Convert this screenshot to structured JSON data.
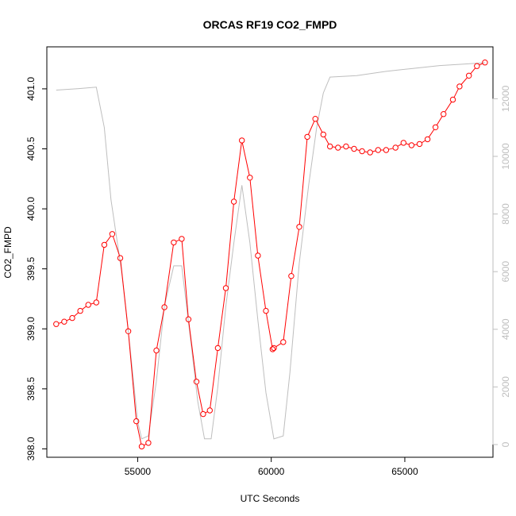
{
  "chart_data": {
    "type": "line",
    "title": "ORCAS RF19 CO2_FMPD",
    "xlabel": "UTC Seconds",
    "ylabel": "CO2_FMPD",
    "xlim": [
      51600,
      68300
    ],
    "ylim": [
      397.93,
      401.35
    ],
    "y2lim": [
      -440,
      13800
    ],
    "x_ticks": [
      55000,
      60000,
      65000
    ],
    "x_tick_labels": [
      "55000",
      "60000",
      "65000"
    ],
    "y_ticks": [
      398.0,
      398.5,
      399.0,
      399.5,
      400.0,
      400.5,
      401.0
    ],
    "y_tick_labels": [
      "398.0",
      "398.5",
      "399.0",
      "399.5",
      "400.0",
      "400.5",
      "401.0"
    ],
    "y2_ticks": [
      0,
      2000,
      4000,
      6000,
      8000,
      10000,
      12000
    ],
    "y2_tick_labels": [
      "0",
      "2000",
      "4000",
      "6000",
      "8000",
      "10000",
      "12000"
    ],
    "grid": false,
    "colors": {
      "co2": "#ff0000",
      "altitude": "#bebebe",
      "axis": "#000000",
      "right_axis": "#bebebe"
    },
    "series": [
      {
        "style": "points-and-lines",
        "axis": "left",
        "x": [
          51950,
          52250,
          52550,
          52850,
          53150,
          53450,
          53750,
          54050,
          54350,
          54650,
          54950,
          55150,
          55400,
          55700,
          56000,
          56350,
          56650,
          56900,
          57200,
          57450,
          57700,
          58000,
          58300,
          58600,
          58900,
          59200,
          59500,
          59800,
          60050,
          60100,
          60450,
          60750,
          61050,
          61350,
          61650,
          61950,
          62200,
          62500,
          62800,
          63100,
          63400,
          63700,
          64000,
          64300,
          64650,
          64950,
          65250,
          65550,
          65850,
          66150,
          66450,
          66800,
          67050,
          67400,
          67700,
          68000
        ],
        "y": [
          399.04,
          399.06,
          399.09,
          399.15,
          399.2,
          399.22,
          399.7,
          399.79,
          399.59,
          398.98,
          398.23,
          398.02,
          398.05,
          398.82,
          399.18,
          399.72,
          399.75,
          399.08,
          398.56,
          398.29,
          398.32,
          398.84,
          399.34,
          400.06,
          400.57,
          400.26,
          399.61,
          399.15,
          398.83,
          398.84,
          398.89,
          399.44,
          399.85,
          400.6,
          400.75,
          400.62,
          400.52,
          400.51,
          400.52,
          400.5,
          400.48,
          400.47,
          400.49,
          400.49,
          400.51,
          400.55,
          400.53,
          400.54,
          400.58,
          400.68,
          400.79,
          400.91,
          401.02,
          401.11,
          401.19,
          401.22
        ]
      },
      {
        "style": "line",
        "axis": "right",
        "x": [
          51950,
          52800,
          53450,
          53750,
          54000,
          54400,
          54700,
          55000,
          55150,
          55400,
          55700,
          56000,
          56350,
          56650,
          57000,
          57250,
          57500,
          57750,
          58000,
          58300,
          58600,
          58900,
          59200,
          59500,
          59800,
          60100,
          60450,
          60700,
          61050,
          61400,
          61700,
          61950,
          62200,
          63200,
          64300,
          65300,
          66300,
          67200,
          68000
        ],
        "y": [
          12300,
          12350,
          12400,
          11000,
          8500,
          6000,
          3500,
          800,
          200,
          300,
          2200,
          4800,
          6200,
          6200,
          3500,
          1500,
          200,
          200,
          2000,
          4800,
          7000,
          9000,
          7000,
          4300,
          1800,
          200,
          300,
          2500,
          6300,
          9000,
          11000,
          12200,
          12750,
          12800,
          12950,
          13050,
          13150,
          13200,
          13250
        ]
      }
    ]
  }
}
